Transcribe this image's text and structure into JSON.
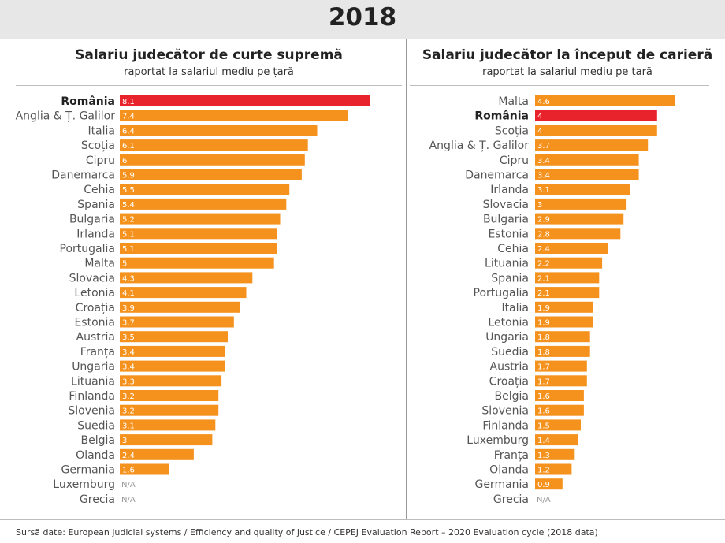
{
  "year": "2018",
  "colors": {
    "bar": "#f5921e",
    "highlight": "#e8232b",
    "na_text": "#999999"
  },
  "chart_data": [
    {
      "type": "bar",
      "orientation": "horizontal",
      "title": "Salariu judecător de curte supremă",
      "subtitle": "raportat la salariul mediu pe țară",
      "highlight": "România",
      "xlim": [
        0,
        8.1
      ],
      "grid": false,
      "categories": [
        "România",
        "Anglia & Ț. Galilor",
        "Italia",
        "Scoția",
        "Cipru",
        "Danemarca",
        "Cehia",
        "Spania",
        "Bulgaria",
        "Irlanda",
        "Portugalia",
        "Malta",
        "Slovacia",
        "Letonia",
        "Croația",
        "Estonia",
        "Austria",
        "Franța",
        "Ungaria",
        "Lituania",
        "Finlanda",
        "Slovenia",
        "Suedia",
        "Belgia",
        "Olanda",
        "Germania",
        "Luxemburg",
        "Grecia"
      ],
      "values": [
        8.1,
        7.4,
        6.4,
        6.1,
        6,
        5.9,
        5.5,
        5.4,
        5.2,
        5.1,
        5.1,
        5,
        4.3,
        4.1,
        3.9,
        3.7,
        3.5,
        3.4,
        3.4,
        3.3,
        3.2,
        3.2,
        3.1,
        3,
        2.4,
        1.6,
        null,
        null
      ],
      "labels": [
        "8.1",
        "7.4",
        "6.4",
        "6.1",
        "6",
        "5.9",
        "5.5",
        "5.4",
        "5.2",
        "5.1",
        "5.1",
        "5",
        "4.3",
        "4.1",
        "3.9",
        "3.7",
        "3.5",
        "3.4",
        "3.4",
        "3.3",
        "3.2",
        "3.2",
        "3.1",
        "3",
        "2.4",
        "1.6",
        "N/A",
        "N/A"
      ]
    },
    {
      "type": "bar",
      "orientation": "horizontal",
      "title": "Salariu judecător la început de carieră",
      "subtitle": "raportat la salariul mediu pe țară",
      "highlight": "România",
      "xlim": [
        0,
        4.6
      ],
      "grid": false,
      "categories": [
        "Malta",
        "România",
        "Scoția",
        "Anglia & Ț. Galilor",
        "Cipru",
        "Danemarca",
        "Irlanda",
        "Slovacia",
        "Bulgaria",
        "Estonia",
        "Cehia",
        "Lituania",
        "Spania",
        "Portugalia",
        "Italia",
        "Letonia",
        "Ungaria",
        "Suedia",
        "Austria",
        "Croația",
        "Belgia",
        "Slovenia",
        "Finlanda",
        "Luxemburg",
        "Franța",
        "Olanda",
        "Germania",
        "Grecia"
      ],
      "values": [
        4.6,
        4,
        4,
        3.7,
        3.4,
        3.4,
        3.1,
        3,
        2.9,
        2.8,
        2.4,
        2.2,
        2.1,
        2.1,
        1.9,
        1.9,
        1.8,
        1.8,
        1.7,
        1.7,
        1.6,
        1.6,
        1.5,
        1.4,
        1.3,
        1.2,
        0.9,
        null
      ],
      "labels": [
        "4.6",
        "4",
        "4",
        "3.7",
        "3.4",
        "3.4",
        "3.1",
        "3",
        "2.9",
        "2.8",
        "2.4",
        "2.2",
        "2.1",
        "2.1",
        "1.9",
        "1.9",
        "1.8",
        "1.8",
        "1.7",
        "1.7",
        "1.6",
        "1.6",
        "1.5",
        "1.4",
        "1.3",
        "1.2",
        "0.9",
        "N/A"
      ]
    }
  ],
  "source": "Sursă date: European judicial systems / Efficiency and quality of justice / CEPEJ Evaluation Report – 2020 Evaluation cycle (2018 data)"
}
